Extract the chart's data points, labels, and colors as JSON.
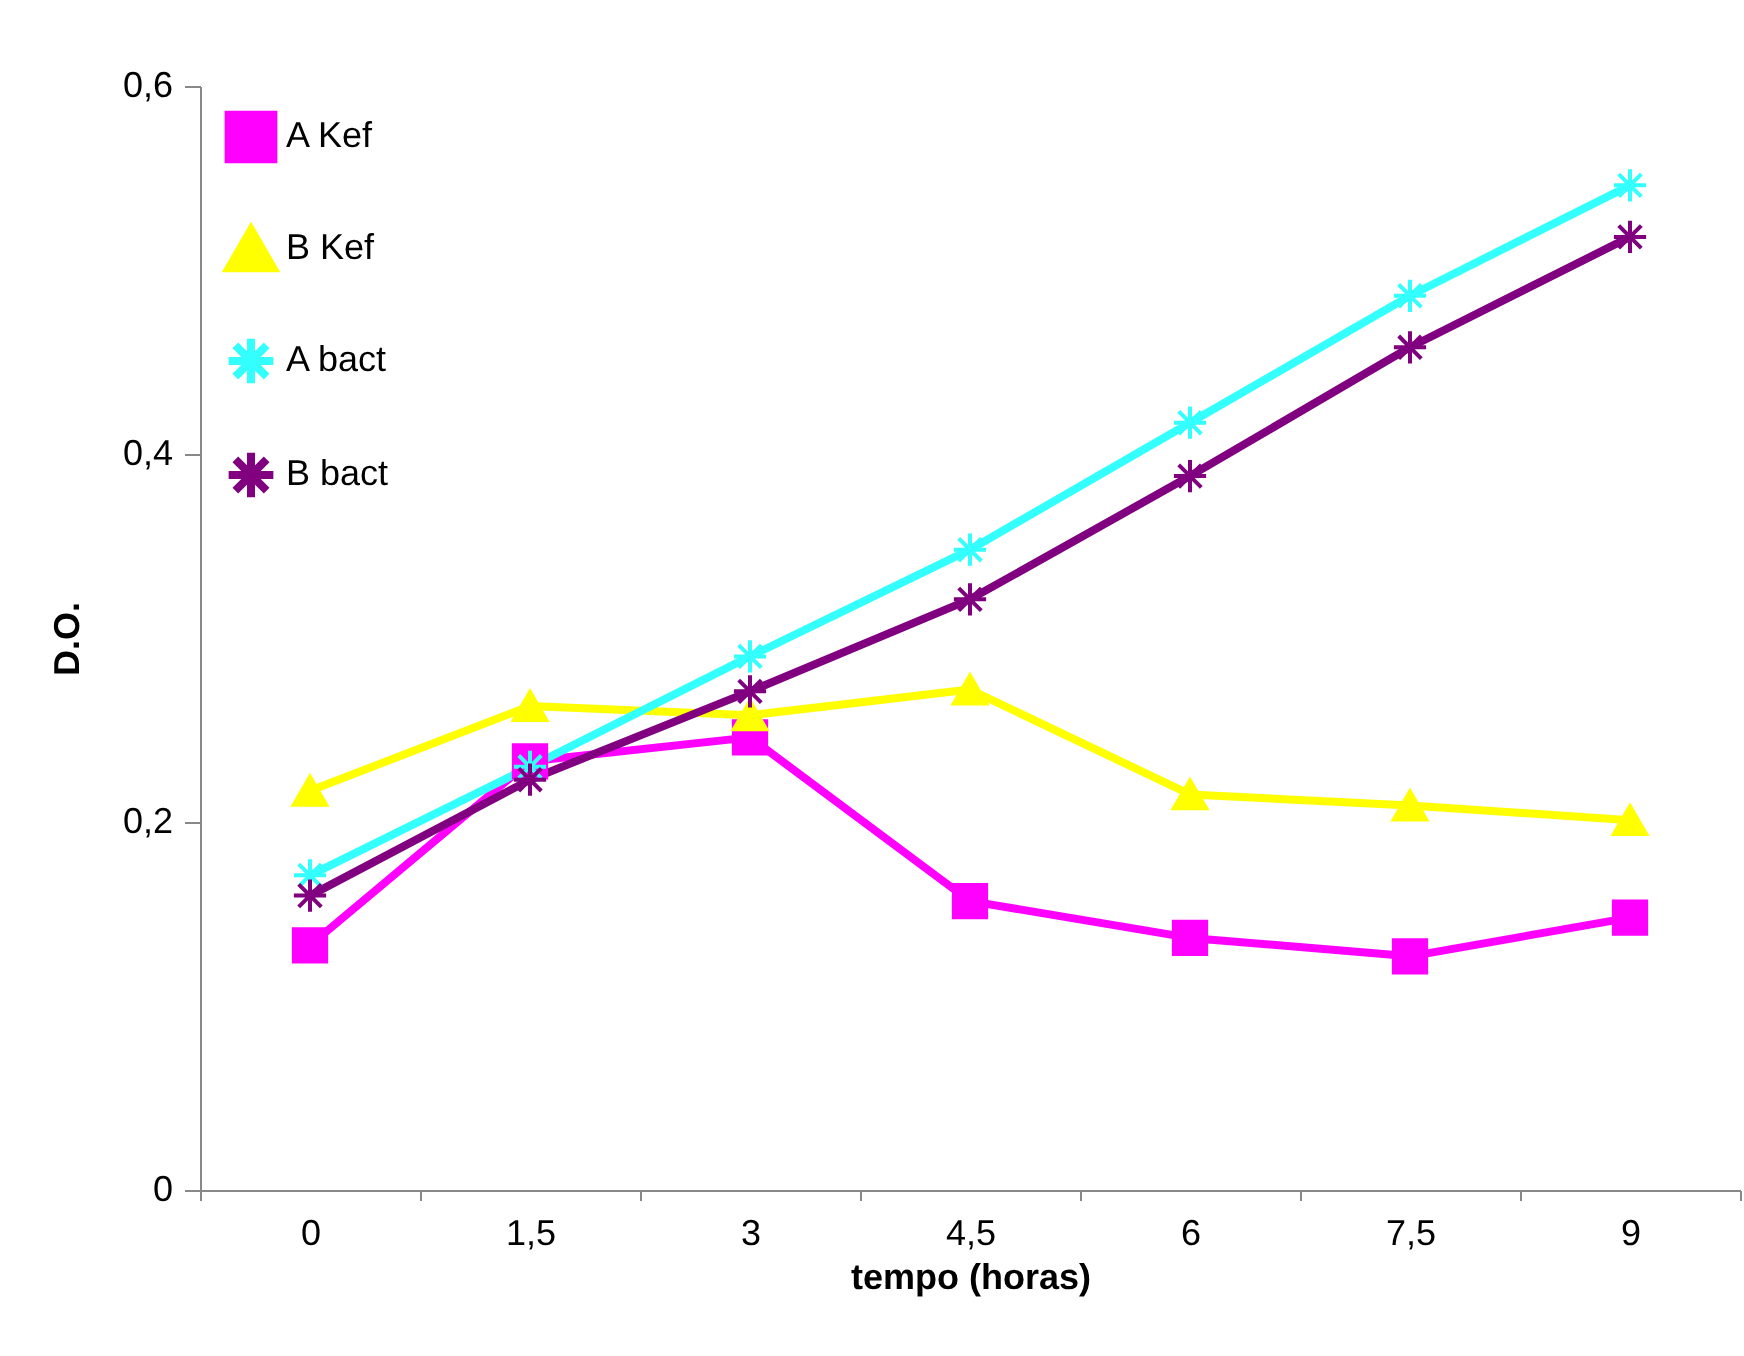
{
  "chart_data": {
    "type": "line",
    "xlabel": "tempo (horas)",
    "ylabel": "D.O.",
    "categories": [
      "0",
      "1,5",
      "3",
      "4,5",
      "6",
      "7,5",
      "9"
    ],
    "series": [
      {
        "name": "A Kef",
        "color": "#ff00ff",
        "marker": "square",
        "values": [
          0.133,
          0.233,
          0.246,
          0.157,
          0.137,
          0.127,
          0.148
        ]
      },
      {
        "name": "B Kef",
        "color": "#ffff00",
        "marker": "triangle",
        "values": [
          0.217,
          0.263,
          0.258,
          0.272,
          0.215,
          0.209,
          0.201
        ]
      },
      {
        "name": "A bact",
        "color": "#33ffff",
        "marker": "cross",
        "values": [
          0.171,
          0.23,
          0.29,
          0.348,
          0.417,
          0.486,
          0.546
        ]
      },
      {
        "name": "B bact",
        "color": "#800080",
        "marker": "cross",
        "values": [
          0.16,
          0.223,
          0.271,
          0.321,
          0.388,
          0.458,
          0.518
        ]
      }
    ],
    "ylim": [
      0,
      0.6
    ],
    "yticks": [
      {
        "value": 0,
        "label": "0"
      },
      {
        "value": 0.2,
        "label": "0,2"
      },
      {
        "value": 0.4,
        "label": "0,4"
      },
      {
        "value": 0.6,
        "label": "0,6"
      }
    ],
    "grid": false,
    "legend": "top left"
  }
}
